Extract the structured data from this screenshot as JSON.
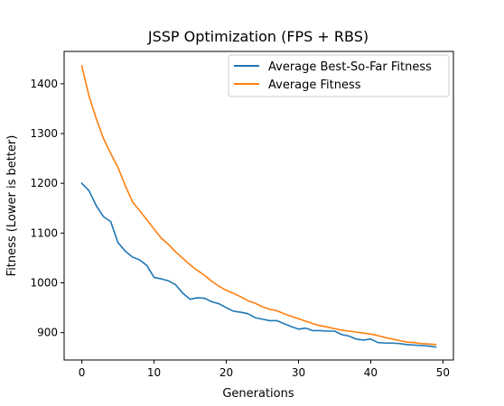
{
  "chart_data": {
    "type": "line",
    "title": "JSSP Optimization (FPS + RBS)",
    "xlabel": "Generations",
    "ylabel": "Fitness (Lower is better)",
    "xlim": [
      -2.45,
      51.45
    ],
    "ylim": [
      845,
      1465
    ],
    "xticks": [
      0,
      10,
      20,
      30,
      40,
      50
    ],
    "yticks": [
      900,
      1000,
      1100,
      1200,
      1300,
      1400
    ],
    "legend_position": "top-right",
    "series": [
      {
        "name": "Average Best-So-Far Fitness",
        "color": "#1f77b4",
        "x": [
          0,
          1,
          2,
          3,
          4,
          5,
          6,
          7,
          8,
          9,
          10,
          11,
          12,
          13,
          14,
          15,
          16,
          17,
          18,
          19,
          20,
          21,
          22,
          23,
          24,
          25,
          26,
          27,
          28,
          29,
          30,
          31,
          32,
          33,
          34,
          35,
          36,
          37,
          38,
          39,
          40,
          41,
          42,
          43,
          44,
          45,
          46,
          47,
          48,
          49
        ],
        "values": [
          1200,
          1185,
          1155,
          1133,
          1123,
          1081,
          1064,
          1052,
          1046,
          1035,
          1011,
          1008,
          1004,
          996,
          979,
          967,
          970,
          969,
          962,
          958,
          950,
          943,
          941,
          938,
          930,
          927,
          924,
          924,
          918,
          912,
          907,
          909,
          904,
          904,
          903,
          903,
          896,
          893,
          887,
          885,
          887,
          880,
          879,
          879,
          878,
          876,
          875,
          874,
          873,
          871
        ]
      },
      {
        "name": "Average Fitness",
        "color": "#ff7f0e",
        "x": [
          0,
          1,
          2,
          3,
          4,
          5,
          6,
          7,
          8,
          9,
          10,
          11,
          12,
          13,
          14,
          15,
          16,
          17,
          18,
          19,
          20,
          21,
          22,
          23,
          24,
          25,
          26,
          27,
          28,
          29,
          30,
          31,
          32,
          33,
          34,
          35,
          36,
          37,
          38,
          39,
          40,
          41,
          42,
          43,
          44,
          45,
          46,
          47,
          48,
          49
        ],
        "values": [
          1436,
          1375,
          1330,
          1290,
          1260,
          1232,
          1196,
          1163,
          1145,
          1127,
          1108,
          1090,
          1077,
          1062,
          1049,
          1036,
          1025,
          1015,
          1003,
          993,
          985,
          979,
          972,
          964,
          959,
          952,
          947,
          944,
          938,
          933,
          928,
          923,
          918,
          914,
          911,
          908,
          905,
          903,
          901,
          899,
          897,
          894,
          890,
          887,
          884,
          881,
          880,
          878,
          877,
          876
        ]
      }
    ]
  }
}
